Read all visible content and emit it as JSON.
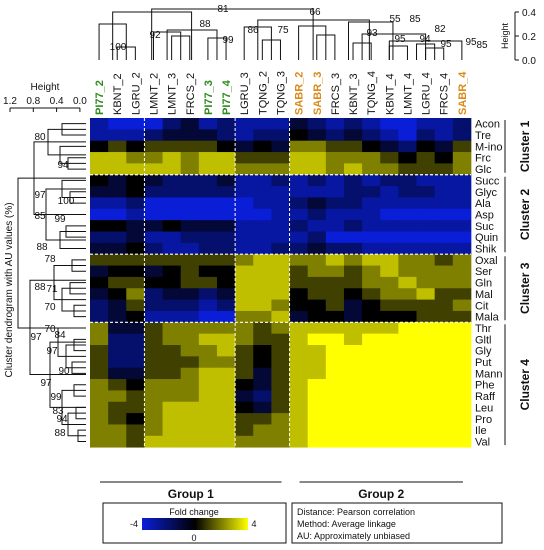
{
  "chart_data": {
    "type": "heatmap",
    "samples": [
      {
        "label": "PI77_2",
        "color": "#2e8b1e"
      },
      {
        "label": "KBNT_2",
        "color": "#111111"
      },
      {
        "label": "LGRU_2",
        "color": "#111111"
      },
      {
        "label": "LMNT_2",
        "color": "#111111"
      },
      {
        "label": "LMNT_3",
        "color": "#111111"
      },
      {
        "label": "FRCS_2",
        "color": "#111111"
      },
      {
        "label": "PI77_3",
        "color": "#2e8b1e"
      },
      {
        "label": "PI77_4",
        "color": "#2e8b1e"
      },
      {
        "label": "LGRU_3",
        "color": "#111111"
      },
      {
        "label": "TQNG_2",
        "color": "#111111"
      },
      {
        "label": "TQNG_3",
        "color": "#111111"
      },
      {
        "label": "SABR_2",
        "color": "#d98a1a"
      },
      {
        "label": "SABR_3",
        "color": "#d98a1a"
      },
      {
        "label": "FRCS_3",
        "color": "#111111"
      },
      {
        "label": "KBNT_3",
        "color": "#111111"
      },
      {
        "label": "TQNG_4",
        "color": "#111111"
      },
      {
        "label": "KBNT_4",
        "color": "#111111"
      },
      {
        "label": "LMNT_4",
        "color": "#111111"
      },
      {
        "label": "LGRU_4",
        "color": "#111111"
      },
      {
        "label": "FRCS_4",
        "color": "#111111"
      },
      {
        "label": "SABR_4",
        "color": "#d98a1a"
      }
    ],
    "metabolites": [
      "Acon",
      "Tre",
      "M-ino",
      "Frc",
      "Glc",
      "Succ",
      "Glyc",
      "Ala",
      "Asp",
      "Suc",
      "Quin",
      "Shik",
      "Oxal",
      "Ser",
      "Gln",
      "Mal",
      "Cit",
      "Mala",
      "Thr",
      "Gltl",
      "Gly",
      "Put",
      "Mann",
      "Phe",
      "Raff",
      "Leu",
      "Pro",
      "Ile",
      "Val"
    ],
    "values": [
      [
        -3,
        -4,
        -4,
        -4,
        -2,
        -1,
        -3,
        -2,
        -3,
        -3,
        -3,
        -1,
        -2,
        -3,
        -2,
        -3,
        -4,
        -4,
        -3,
        -3,
        -2
      ],
      [
        -3,
        -3,
        -3,
        -2,
        -1,
        -1,
        -1,
        -2,
        -3,
        -2,
        -2,
        0,
        -1,
        -2,
        -1,
        -2,
        -3,
        -4,
        -2,
        -3,
        -2
      ],
      [
        0,
        1,
        0,
        1,
        1,
        1,
        1,
        0,
        -1,
        0,
        -1,
        2,
        2,
        1,
        1,
        0,
        -1,
        -2,
        0,
        -1,
        1
      ],
      [
        3,
        3,
        2,
        2,
        3,
        2,
        3,
        3,
        1,
        1,
        1,
        3,
        3,
        2,
        2,
        2,
        1,
        0,
        1,
        0,
        2
      ],
      [
        3,
        3,
        3,
        3,
        3,
        2,
        3,
        3,
        2,
        2,
        2,
        3,
        3,
        2,
        3,
        2,
        2,
        1,
        1,
        1,
        2
      ],
      [
        0,
        -1,
        0,
        -1,
        -2,
        -2,
        -2,
        -1,
        -3,
        -3,
        -2,
        -3,
        -2,
        -3,
        -2,
        -3,
        -2,
        -2,
        -3,
        -3,
        -3
      ],
      [
        -1,
        -1,
        0,
        -2,
        -2,
        -2,
        -2,
        -2,
        -3,
        -3,
        -3,
        -3,
        -3,
        -3,
        -2,
        -2,
        -3,
        -2,
        -2,
        -3,
        -3
      ],
      [
        -3,
        -3,
        -2,
        -4,
        -4,
        -4,
        -4,
        -4,
        -4,
        -3,
        -3,
        -2,
        -1,
        -2,
        -2,
        -3,
        -3,
        -3,
        -3,
        -3,
        -3
      ],
      [
        -4,
        -4,
        -3,
        -4,
        -4,
        -4,
        -4,
        -4,
        -4,
        -4,
        -3,
        -3,
        -2,
        -3,
        -3,
        -3,
        -4,
        -4,
        -4,
        -4,
        -4
      ],
      [
        0,
        0,
        -1,
        -1,
        0,
        -1,
        -1,
        -1,
        -3,
        -3,
        -3,
        -2,
        -3,
        -3,
        -2,
        -3,
        -3,
        -3,
        -3,
        -3,
        -3
      ],
      [
        -2,
        -2,
        -1,
        -3,
        -3,
        -2,
        -2,
        -2,
        -3,
        -3,
        -3,
        -3,
        -2,
        -4,
        -4,
        -4,
        -4,
        -4,
        -4,
        -4,
        -4
      ],
      [
        -1,
        -1,
        0,
        -2,
        -3,
        -3,
        -2,
        -2,
        -3,
        -3,
        -2,
        -2,
        -1,
        -2,
        -2,
        -3,
        -3,
        -3,
        -3,
        -3,
        -3
      ],
      [
        1,
        1,
        1,
        1,
        1,
        1,
        1,
        1,
        2,
        3,
        3,
        2,
        2,
        3,
        2,
        3,
        3,
        2,
        2,
        1,
        2
      ],
      [
        -1,
        0,
        0,
        -1,
        0,
        1,
        0,
        0,
        3,
        3,
        3,
        1,
        2,
        2,
        1,
        2,
        3,
        2,
        2,
        2,
        2
      ],
      [
        0,
        1,
        1,
        0,
        0,
        1,
        1,
        0,
        3,
        3,
        3,
        1,
        1,
        1,
        1,
        2,
        2,
        3,
        2,
        2,
        2
      ],
      [
        -1,
        0,
        2,
        -2,
        -1,
        -1,
        -2,
        -1,
        3,
        3,
        3,
        0,
        1,
        1,
        0,
        1,
        2,
        2,
        3,
        1,
        1
      ],
      [
        -2,
        -1,
        1,
        -2,
        -2,
        -2,
        -3,
        -2,
        3,
        3,
        2,
        0,
        0,
        1,
        -1,
        0,
        1,
        1,
        1,
        1,
        2
      ],
      [
        -2,
        -1,
        0,
        -3,
        -3,
        -3,
        -4,
        -4,
        2,
        2,
        3,
        -1,
        0,
        0,
        -1,
        0,
        0,
        0,
        1,
        1,
        1
      ],
      [
        2,
        -1,
        -1,
        1,
        2,
        2,
        2,
        2,
        2,
        1,
        2,
        3,
        3,
        3,
        3,
        3,
        3,
        4,
        4,
        4,
        4
      ],
      [
        2,
        -2,
        -2,
        1,
        2,
        2,
        3,
        3,
        2,
        1,
        1,
        3,
        4,
        4,
        3,
        4,
        4,
        4,
        4,
        4,
        4
      ],
      [
        1,
        -2,
        -2,
        1,
        1,
        2,
        2,
        3,
        1,
        0,
        1,
        3,
        3,
        4,
        4,
        4,
        4,
        4,
        4,
        4,
        4
      ],
      [
        1,
        -2,
        -2,
        1,
        1,
        1,
        2,
        2,
        1,
        0,
        1,
        3,
        3,
        4,
        4,
        4,
        4,
        4,
        4,
        4,
        4
      ],
      [
        1,
        -1,
        -1,
        1,
        1,
        2,
        3,
        3,
        1,
        -1,
        1,
        3,
        3,
        4,
        4,
        4,
        4,
        4,
        4,
        4,
        4
      ],
      [
        2,
        1,
        0,
        2,
        2,
        2,
        3,
        3,
        0,
        -1,
        1,
        3,
        4,
        4,
        4,
        4,
        4,
        4,
        4,
        4,
        4
      ],
      [
        2,
        2,
        1,
        2,
        2,
        2,
        3,
        3,
        -1,
        -2,
        1,
        3,
        4,
        4,
        4,
        4,
        4,
        4,
        4,
        4,
        4
      ],
      [
        2,
        1,
        1,
        2,
        3,
        3,
        3,
        3,
        0,
        -1,
        1,
        3,
        4,
        4,
        4,
        4,
        4,
        4,
        4,
        4,
        4
      ],
      [
        2,
        1,
        0,
        2,
        3,
        3,
        3,
        3,
        1,
        1,
        2,
        3,
        4,
        4,
        4,
        4,
        4,
        4,
        4,
        4,
        4
      ],
      [
        2,
        2,
        1,
        2,
        3,
        3,
        3,
        3,
        1,
        2,
        2,
        3,
        4,
        4,
        4,
        4,
        4,
        4,
        4,
        4,
        4
      ],
      [
        2,
        2,
        1,
        3,
        3,
        3,
        3,
        3,
        2,
        2,
        2,
        3,
        4,
        4,
        4,
        4,
        4,
        4,
        4,
        4,
        4
      ]
    ],
    "clusters": [
      {
        "label": "Cluster 1",
        "start": 0,
        "end": 4
      },
      {
        "label": "Cluster 2",
        "start": 5,
        "end": 11
      },
      {
        "label": "Cluster 3",
        "start": 12,
        "end": 17
      },
      {
        "label": "Cluster 4",
        "start": 18,
        "end": 28
      }
    ],
    "groups": [
      {
        "label": "Group 1",
        "start": 0,
        "end": 10
      },
      {
        "label": "Group 2",
        "start": 11,
        "end": 20
      }
    ],
    "colorscale": {
      "min": -4,
      "max": 4,
      "low": "#0a1ed8",
      "mid": "#000000",
      "high": "#ffff00",
      "ticks": [
        "-4",
        "0",
        "4"
      ],
      "title": "Fold change"
    },
    "row_dendrogram": {
      "axis_title": "Cluster dendrogram with AU values (%)",
      "height_label": "Height",
      "height_ticks": [
        "1.2",
        "0.8",
        "0.4",
        "0.0"
      ],
      "au_labels": [
        "80",
        "94",
        "97",
        "100",
        "85",
        "99",
        "88",
        "78",
        "88",
        "71",
        "70",
        "84",
        "70",
        "97",
        "97",
        "90",
        "99",
        "83",
        "94",
        "88",
        "97"
      ]
    },
    "col_dendrogram": {
      "height_label": "Height",
      "height_ticks": [
        "0.4",
        "0.2",
        "0.0"
      ],
      "au_labels": [
        "81",
        "66",
        "100",
        "88",
        "92",
        "99",
        "86",
        "75",
        "55",
        "85",
        "82",
        "93",
        "95",
        "94",
        "95",
        "95",
        "85"
      ]
    },
    "legend_notes": [
      "Distance: Pearson correlation",
      "Method: Average linkage",
      "AU: Approximately unbiased"
    ]
  }
}
